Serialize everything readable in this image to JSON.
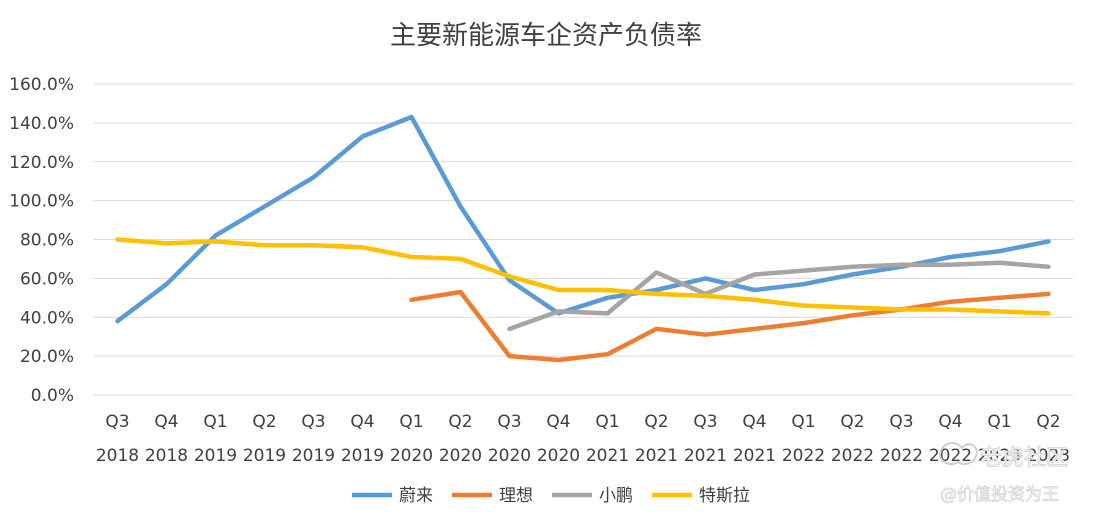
{
  "chart_data": {
    "type": "line",
    "title": "主要新能源车企资产负债率",
    "xlabel": "",
    "ylabel": "",
    "ylim": [
      0,
      160
    ],
    "y_ticks": [
      "0.0%",
      "20.0%",
      "40.0%",
      "60.0%",
      "80.0%",
      "100.0%",
      "120.0%",
      "140.0%",
      "160.0%"
    ],
    "categories": [
      {
        "q": "Q3",
        "y": "2018"
      },
      {
        "q": "Q4",
        "y": "2018"
      },
      {
        "q": "Q1",
        "y": "2019"
      },
      {
        "q": "Q2",
        "y": "2019"
      },
      {
        "q": "Q3",
        "y": "2019"
      },
      {
        "q": "Q4",
        "y": "2019"
      },
      {
        "q": "Q1",
        "y": "2020"
      },
      {
        "q": "Q2",
        "y": "2020"
      },
      {
        "q": "Q3",
        "y": "2020"
      },
      {
        "q": "Q4",
        "y": "2020"
      },
      {
        "q": "Q1",
        "y": "2021"
      },
      {
        "q": "Q2",
        "y": "2021"
      },
      {
        "q": "Q3",
        "y": "2021"
      },
      {
        "q": "Q4",
        "y": "2021"
      },
      {
        "q": "Q1",
        "y": "2022"
      },
      {
        "q": "Q2",
        "y": "2022"
      },
      {
        "q": "Q3",
        "y": "2022"
      },
      {
        "q": "Q4",
        "y": "2022"
      },
      {
        "q": "Q1",
        "y": "2023"
      },
      {
        "q": "Q2",
        "y": "2023"
      }
    ],
    "grid": true,
    "legend_position": "bottom",
    "series": [
      {
        "name": "蔚来",
        "color": "#5b9bd5",
        "values": [
          38,
          57,
          82,
          97,
          112,
          133,
          143,
          97,
          59,
          42,
          50,
          54,
          60,
          54,
          57,
          62,
          66,
          71,
          74,
          79
        ]
      },
      {
        "name": "理想",
        "color": "#ed7d31",
        "values": [
          null,
          null,
          null,
          null,
          null,
          null,
          49,
          53,
          20,
          18,
          21,
          34,
          31,
          34,
          37,
          41,
          44,
          48,
          50,
          52
        ]
      },
      {
        "name": "小鹏",
        "color": "#a5a5a5",
        "values": [
          null,
          null,
          null,
          null,
          null,
          null,
          null,
          null,
          34,
          43,
          42,
          63,
          52,
          62,
          64,
          66,
          67,
          67,
          68,
          66
        ]
      },
      {
        "name": "特斯拉",
        "color": "#ffc000",
        "values": [
          80,
          78,
          79,
          77,
          77,
          76,
          71,
          70,
          61,
          54,
          54,
          52,
          51,
          49,
          46,
          45,
          44,
          44,
          43,
          42
        ]
      }
    ]
  },
  "watermark": {
    "site": "老虎社区",
    "author": "@价值投资为王",
    "icon": "tiger-logo-icon"
  }
}
